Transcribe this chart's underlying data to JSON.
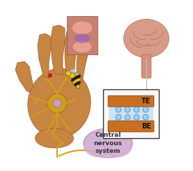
{
  "title": "",
  "bg_color": "#ffffff",
  "hand_color": "#c68642",
  "hand_shadow": "#a0522d",
  "neuron_color": "#d4a017",
  "neuron_body_color": "#d4a017",
  "neuron_nucleus_color": "#c8a0c8",
  "cns_color": "#d4b0d4",
  "cns_text": "Central\nnervous\nsystem",
  "cns_text_color": "#333333",
  "te_label": "TE",
  "be_label": "BE",
  "te_be_color": "#c87020",
  "box_border": "#333333",
  "dot_color": "#4090c0",
  "dot_fill": "#a0d0f0",
  "brain_color": "#d4907a",
  "wasp_yellow": "#e8c020",
  "wasp_black": "#202020",
  "sting_color": "#cc2020",
  "neuron_edge": "#a07010",
  "figsize": [
    2.77,
    2.45
  ],
  "dpi": 100
}
